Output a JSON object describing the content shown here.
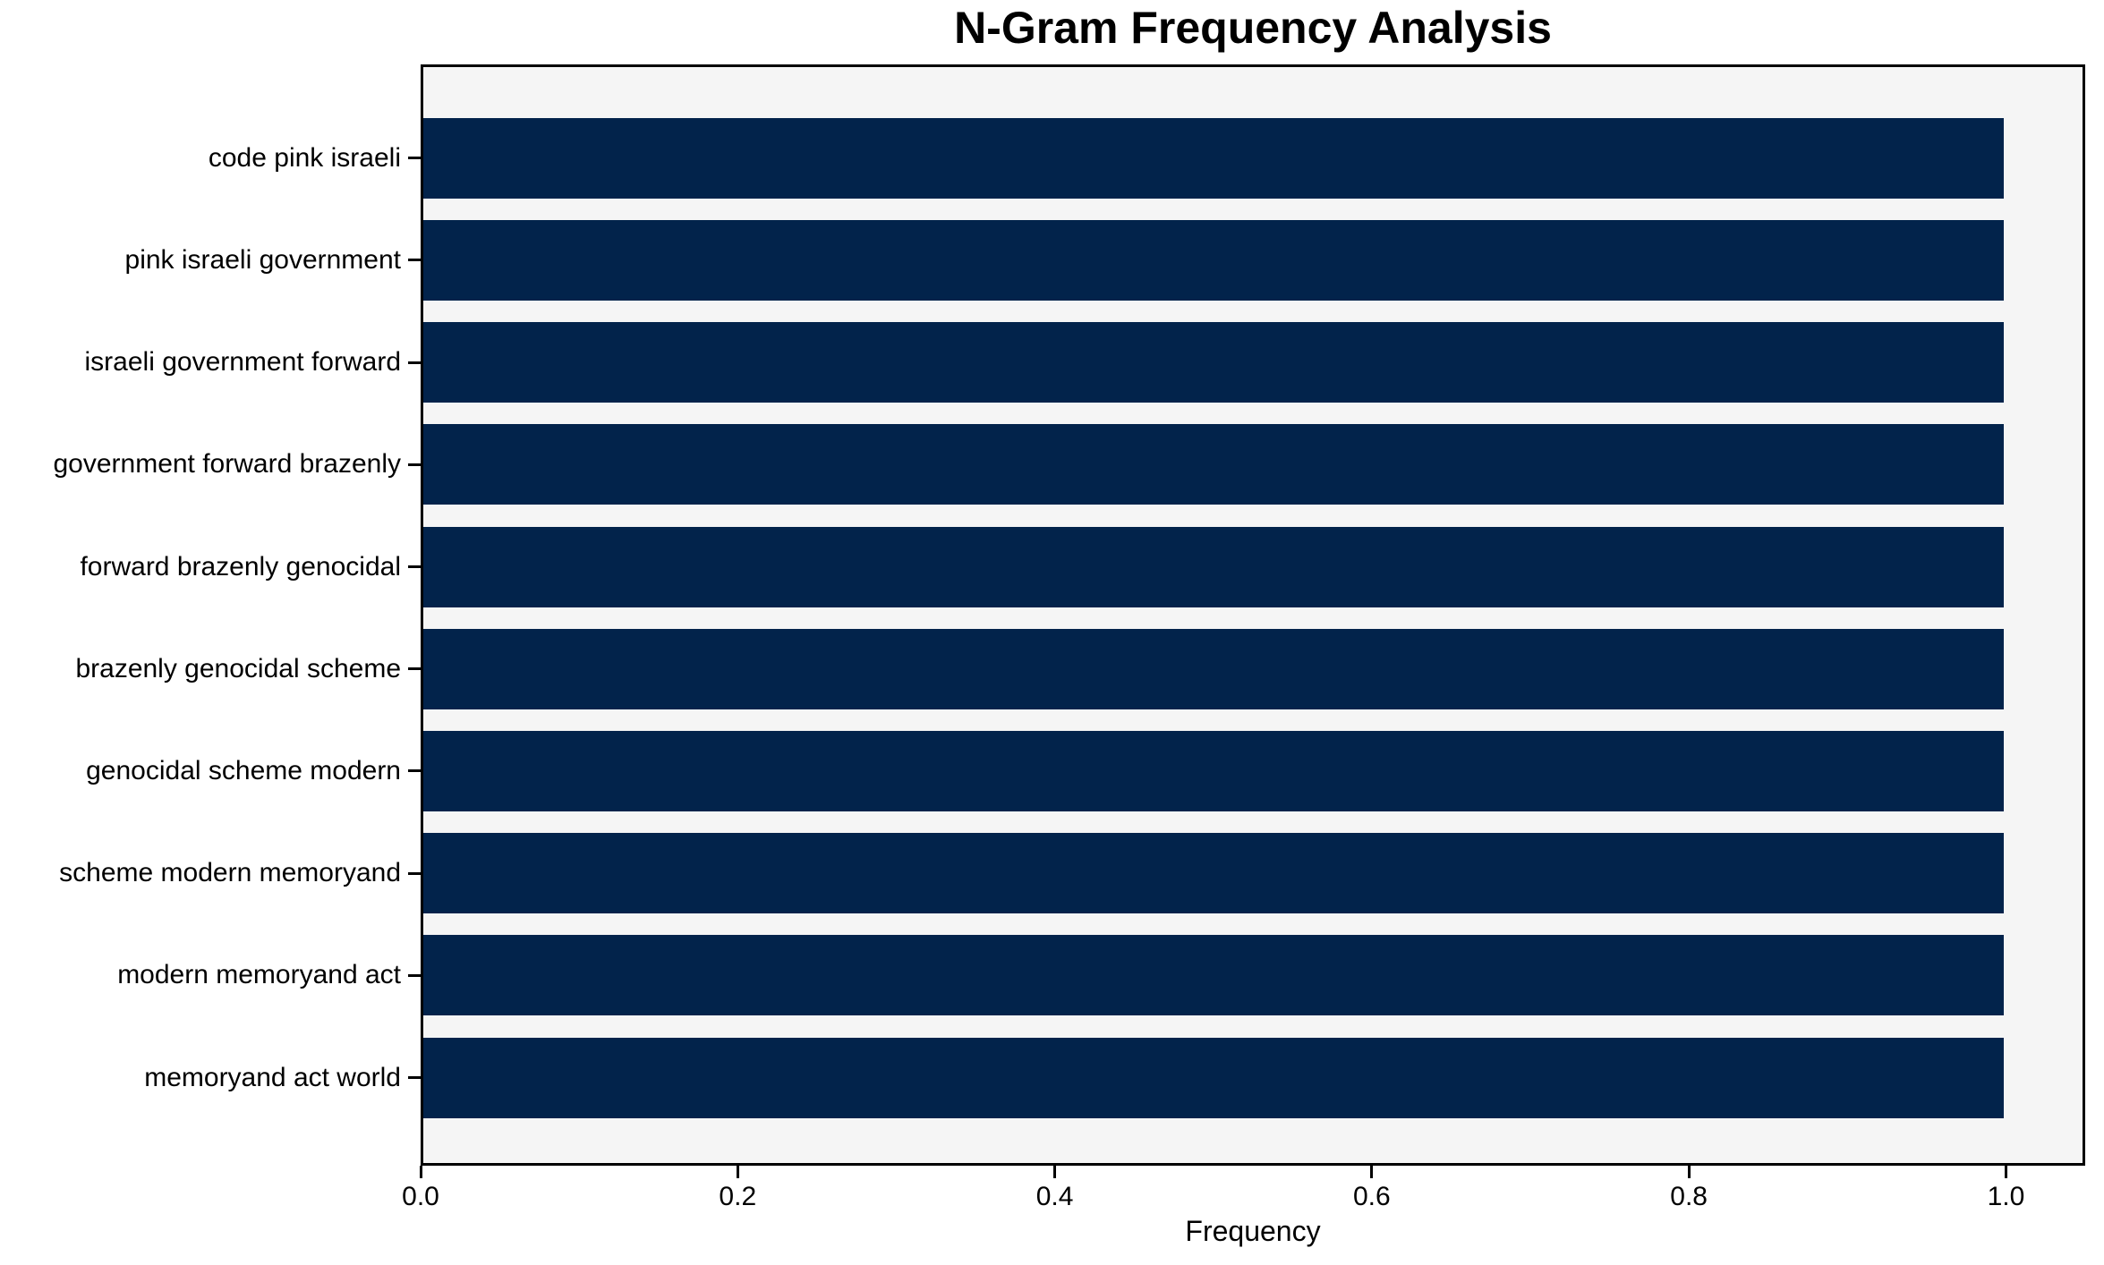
{
  "chart_data": {
    "type": "bar",
    "orientation": "horizontal",
    "title": "N-Gram Frequency Analysis",
    "xlabel": "Frequency",
    "ylabel": "",
    "categories": [
      "code pink israeli",
      "pink israeli government",
      "israeli government forward",
      "government forward brazenly",
      "forward brazenly genocidal",
      "brazenly genocidal scheme",
      "genocidal scheme modern",
      "scheme modern memoryand",
      "modern memoryand act",
      "memoryand act world"
    ],
    "values": [
      1.0,
      1.0,
      1.0,
      1.0,
      1.0,
      1.0,
      1.0,
      1.0,
      1.0,
      1.0
    ],
    "xlim": [
      0.0,
      1.05
    ],
    "x_tick_labels": [
      "0.0",
      "0.2",
      "0.4",
      "0.6",
      "0.8",
      "1.0"
    ],
    "x_tick_values": [
      0.0,
      0.2,
      0.4,
      0.6,
      0.8,
      1.0
    ],
    "grid": false,
    "legend": null,
    "colors": {
      "bar": "#02234b",
      "plot_background": "#f5f5f5",
      "figure_background": "#ffffff",
      "spine": "#000000",
      "text": "#000000"
    }
  }
}
